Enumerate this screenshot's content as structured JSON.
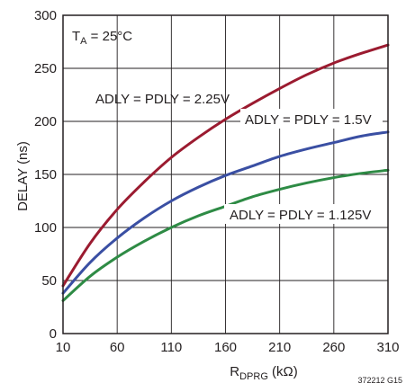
{
  "chart_data": {
    "type": "line",
    "title": "",
    "xlabel": {
      "main": "R",
      "sub": "DPRG",
      "unit": " (kΩ)"
    },
    "ylabel": "DELAY (ns)",
    "xlim": [
      10,
      310
    ],
    "ylim": [
      0,
      300
    ],
    "xticks": [
      10,
      60,
      110,
      160,
      210,
      260,
      310
    ],
    "yticks": [
      0,
      50,
      100,
      150,
      200,
      250,
      300
    ],
    "grid": true,
    "annotation_temp": {
      "main": "T",
      "sub": "A",
      "rest": " = 25°C"
    },
    "figure_id": "372212 G15",
    "series": [
      {
        "name": "ADLY = PDLY = 2.25V",
        "color": "#9b1b30",
        "x": [
          10,
          35,
          60,
          85,
          110,
          135,
          160,
          185,
          210,
          235,
          260,
          285,
          310
        ],
        "y": [
          45,
          85,
          117,
          143,
          166,
          185,
          202,
          217,
          231,
          244,
          255,
          264,
          272
        ]
      },
      {
        "name": "ADLY = PDLY = 1.5V",
        "color": "#3a4fa3",
        "x": [
          10,
          35,
          60,
          85,
          110,
          135,
          160,
          185,
          210,
          235,
          260,
          285,
          310
        ],
        "y": [
          38,
          67,
          90,
          109,
          125,
          138,
          149,
          158,
          167,
          174,
          180,
          186,
          190
        ]
      },
      {
        "name": "ADLY = PDLY = 1.125V",
        "color": "#2e8b45",
        "x": [
          10,
          35,
          60,
          85,
          110,
          135,
          160,
          185,
          210,
          235,
          260,
          285,
          310
        ],
        "y": [
          31,
          54,
          72,
          87,
          100,
          111,
          120,
          129,
          136,
          142,
          147,
          151,
          154
        ]
      }
    ]
  }
}
